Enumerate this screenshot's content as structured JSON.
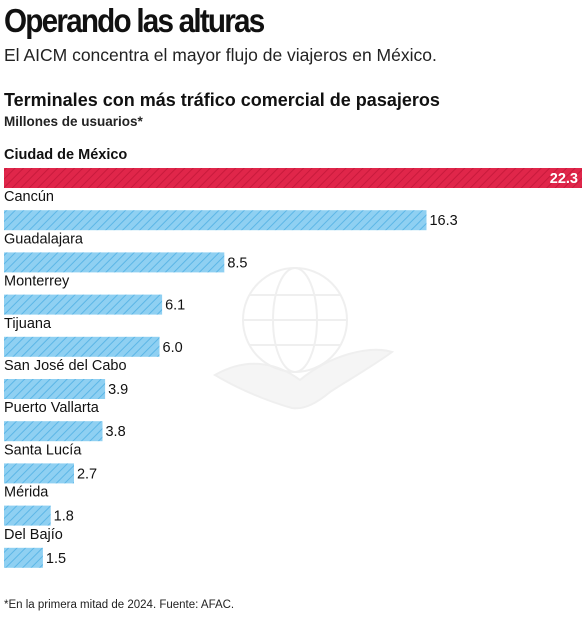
{
  "header": {
    "title": "Operando las alturas",
    "subtitle": "El AICM concentra el mayor flujo de viajeros en México."
  },
  "colors": {
    "highlight": "#e0264a",
    "bar": "#8fd0f2",
    "text": "#111111"
  },
  "chart_data": {
    "type": "bar",
    "orientation": "horizontal",
    "title": "Terminales con más tráfico comercial de pasajeros",
    "unit_label": "Millones de usuarios*",
    "categories": [
      "Ciudad de México",
      "Cancún",
      "Guadalajara",
      "Monterrey",
      "Tijuana",
      "San José del Cabo",
      "Puerto Vallarta",
      "Santa Lucía",
      "Mérida",
      "Del Bajío"
    ],
    "values": [
      22.3,
      16.3,
      8.5,
      6.1,
      6.0,
      3.9,
      3.8,
      2.7,
      1.8,
      1.5
    ],
    "value_labels": [
      "22.3",
      "16.3",
      "8.5",
      "6.1",
      "6.0",
      "3.9",
      "3.8",
      "2.7",
      "1.8",
      "1.5"
    ],
    "highlighted_category": "Ciudad de México",
    "xlim": [
      0,
      22.3
    ],
    "grid": false,
    "legend": "none"
  },
  "footnote": "*En la primera mitad de 2024. Fuente: AFAC."
}
